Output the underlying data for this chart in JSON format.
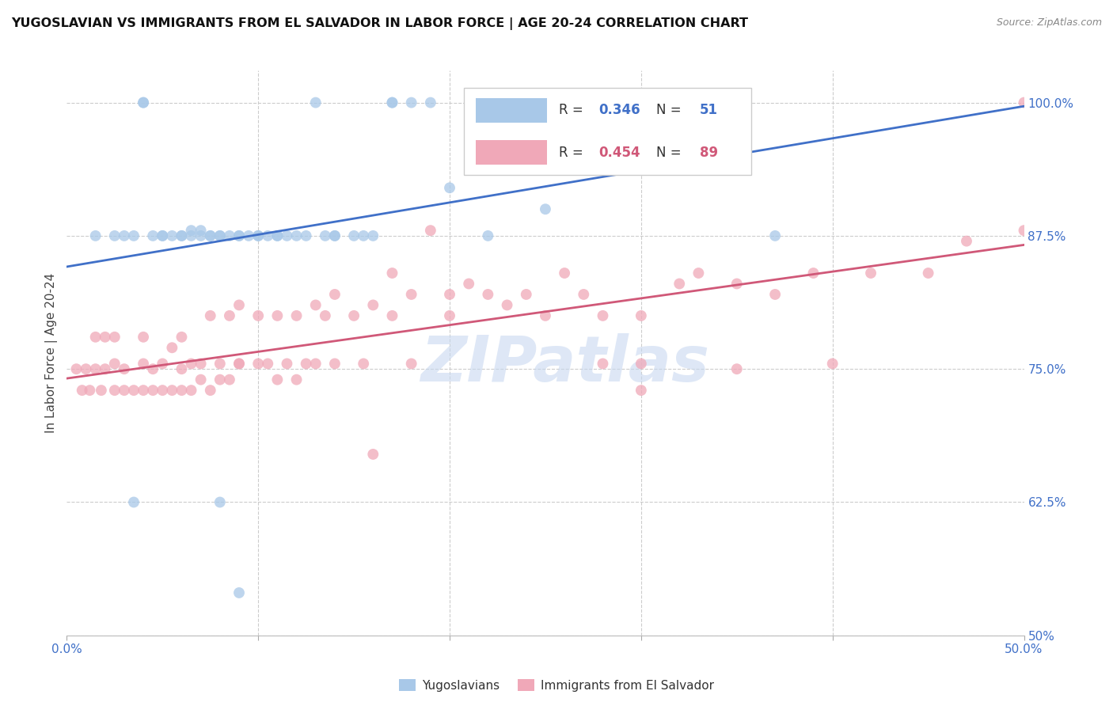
{
  "title": "YUGOSLAVIAN VS IMMIGRANTS FROM EL SALVADOR IN LABOR FORCE | AGE 20-24 CORRELATION CHART",
  "source": "Source: ZipAtlas.com",
  "ylabel": "In Labor Force | Age 20-24",
  "xlim": [
    0.0,
    0.5
  ],
  "ylim": [
    0.5,
    1.03
  ],
  "x_ticks": [
    0.0,
    0.1,
    0.2,
    0.3,
    0.4,
    0.5
  ],
  "x_tick_labels": [
    "0.0%",
    "",
    "",
    "",
    "",
    "50.0%"
  ],
  "y_ticks": [
    0.5,
    0.625,
    0.75,
    0.875,
    1.0
  ],
  "y_tick_labels": [
    "50%",
    "62.5%",
    "75.0%",
    "87.5%",
    "100.0%"
  ],
  "blue_R": 0.346,
  "blue_N": 51,
  "pink_R": 0.454,
  "pink_N": 89,
  "blue_color": "#a8c8e8",
  "pink_color": "#f0a8b8",
  "blue_line_color": "#4070c8",
  "pink_line_color": "#d05878",
  "blue_line_label_color": "#4070c8",
  "pink_line_label_color": "#d05878",
  "watermark": "ZIPatlas",
  "watermark_color": "#c8d8f0",
  "tick_label_color": "#4070c8",
  "blue_points_x": [
    0.015,
    0.025,
    0.03,
    0.035,
    0.04,
    0.04,
    0.045,
    0.05,
    0.05,
    0.055,
    0.06,
    0.06,
    0.065,
    0.065,
    0.07,
    0.07,
    0.075,
    0.075,
    0.08,
    0.08,
    0.085,
    0.09,
    0.09,
    0.095,
    0.1,
    0.1,
    0.105,
    0.11,
    0.11,
    0.115,
    0.12,
    0.125,
    0.13,
    0.135,
    0.14,
    0.14,
    0.15,
    0.155,
    0.16,
    0.17,
    0.17,
    0.18,
    0.19,
    0.2,
    0.22,
    0.25,
    0.3,
    0.035,
    0.08,
    0.09,
    0.37
  ],
  "blue_points_y": [
    0.875,
    0.875,
    0.875,
    0.875,
    1.0,
    1.0,
    0.875,
    0.875,
    0.875,
    0.875,
    0.875,
    0.875,
    0.88,
    0.875,
    0.875,
    0.88,
    0.875,
    0.875,
    0.875,
    0.875,
    0.875,
    0.875,
    0.875,
    0.875,
    0.875,
    0.875,
    0.875,
    0.875,
    0.875,
    0.875,
    0.875,
    0.875,
    1.0,
    0.875,
    0.875,
    0.875,
    0.875,
    0.875,
    0.875,
    1.0,
    1.0,
    1.0,
    1.0,
    0.92,
    0.875,
    0.9,
    0.96,
    0.625,
    0.625,
    0.54,
    0.875
  ],
  "pink_points_x": [
    0.005,
    0.008,
    0.01,
    0.012,
    0.015,
    0.015,
    0.018,
    0.02,
    0.02,
    0.025,
    0.025,
    0.025,
    0.03,
    0.03,
    0.035,
    0.04,
    0.04,
    0.04,
    0.045,
    0.045,
    0.05,
    0.05,
    0.055,
    0.055,
    0.06,
    0.06,
    0.06,
    0.065,
    0.065,
    0.07,
    0.07,
    0.075,
    0.075,
    0.08,
    0.08,
    0.085,
    0.085,
    0.09,
    0.09,
    0.09,
    0.1,
    0.1,
    0.105,
    0.11,
    0.11,
    0.115,
    0.12,
    0.12,
    0.125,
    0.13,
    0.13,
    0.135,
    0.14,
    0.14,
    0.15,
    0.155,
    0.16,
    0.17,
    0.17,
    0.18,
    0.19,
    0.2,
    0.2,
    0.21,
    0.22,
    0.23,
    0.24,
    0.25,
    0.26,
    0.27,
    0.28,
    0.3,
    0.3,
    0.32,
    0.33,
    0.35,
    0.37,
    0.39,
    0.4,
    0.42,
    0.45,
    0.47,
    0.5,
    0.5,
    0.16,
    0.18,
    0.28,
    0.3,
    0.35
  ],
  "pink_points_y": [
    0.75,
    0.73,
    0.75,
    0.73,
    0.75,
    0.78,
    0.73,
    0.75,
    0.78,
    0.73,
    0.755,
    0.78,
    0.73,
    0.75,
    0.73,
    0.73,
    0.755,
    0.78,
    0.73,
    0.75,
    0.73,
    0.755,
    0.73,
    0.77,
    0.73,
    0.75,
    0.78,
    0.73,
    0.755,
    0.74,
    0.755,
    0.73,
    0.8,
    0.74,
    0.755,
    0.74,
    0.8,
    0.755,
    0.755,
    0.81,
    0.755,
    0.8,
    0.755,
    0.74,
    0.8,
    0.755,
    0.74,
    0.8,
    0.755,
    0.755,
    0.81,
    0.8,
    0.755,
    0.82,
    0.8,
    0.755,
    0.81,
    0.8,
    0.84,
    0.82,
    0.88,
    0.8,
    0.82,
    0.83,
    0.82,
    0.81,
    0.82,
    0.8,
    0.84,
    0.82,
    0.8,
    0.8,
    0.755,
    0.83,
    0.84,
    0.83,
    0.82,
    0.84,
    0.755,
    0.84,
    0.84,
    0.87,
    0.88,
    1.0,
    0.67,
    0.755,
    0.755,
    0.73,
    0.75
  ]
}
